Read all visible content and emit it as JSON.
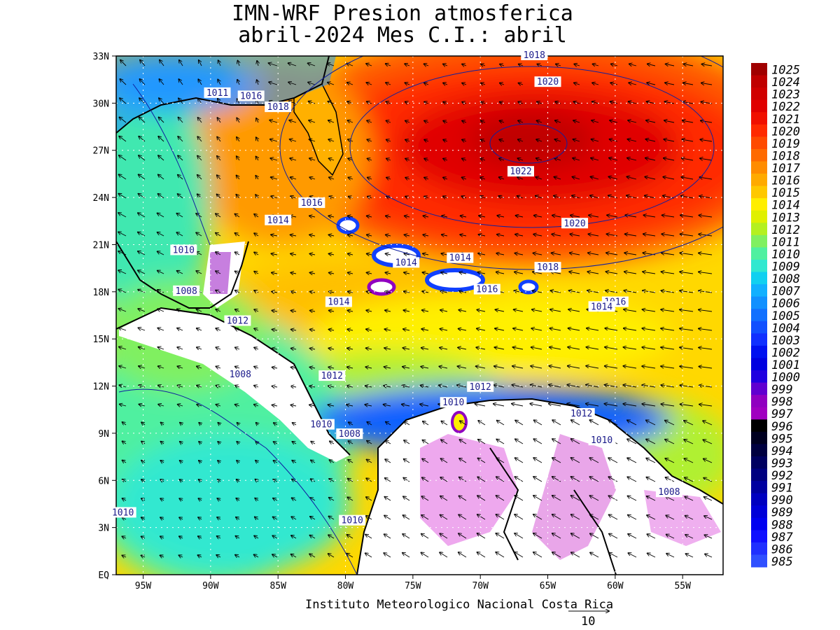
{
  "title": {
    "line1": "IMN-WRF  Presion atmosferica",
    "line2": "abril-2024 Mes C.I.: abril"
  },
  "axes": {
    "lat_labels": [
      "33N",
      "30N",
      "27N",
      "24N",
      "21N",
      "18N",
      "15N",
      "12N",
      "9N",
      "6N",
      "3N",
      "EQ"
    ],
    "lat_values": [
      33,
      30,
      27,
      24,
      21,
      18,
      15,
      12,
      9,
      6,
      3,
      0
    ],
    "lon_labels": [
      "95W",
      "90W",
      "85W",
      "80W",
      "75W",
      "70W",
      "65W",
      "60W",
      "55W"
    ],
    "lon_values": [
      -95,
      -90,
      -85,
      -80,
      -75,
      -70,
      -65,
      -60,
      -55
    ],
    "lon_range": [
      -97,
      -52
    ],
    "lat_range": [
      0,
      33
    ]
  },
  "colorbar": {
    "levels": [
      1025,
      1024,
      1023,
      1022,
      1021,
      1020,
      1019,
      1018,
      1017,
      1016,
      1015,
      1014,
      1013,
      1012,
      1011,
      1010,
      1009,
      1008,
      1007,
      1006,
      1005,
      1004,
      1003,
      1002,
      1001,
      1000,
      999,
      998,
      997,
      996,
      995,
      994,
      993,
      992,
      991,
      990,
      989,
      988,
      987,
      986,
      985
    ],
    "colors": [
      "#a00000",
      "#c00000",
      "#d00000",
      "#e00000",
      "#f01000",
      "#ff2a00",
      "#ff4a00",
      "#ff6a00",
      "#ff8c00",
      "#ffaa00",
      "#ffc800",
      "#ffee00",
      "#e0f000",
      "#b4f020",
      "#80f060",
      "#50f0a0",
      "#30e8d0",
      "#10d0f0",
      "#10b0ff",
      "#1090ff",
      "#1070ff",
      "#1050ff",
      "#1030ff",
      "#0010f0",
      "#0000e0",
      "#2000e0",
      "#6000d0",
      "#9000c0",
      "#a000c0",
      "#000000",
      "#000020",
      "#000040",
      "#000060",
      "#000080",
      "#0000a0",
      "#0000c0",
      "#0000d8",
      "#0000f0",
      "#1010ff",
      "#2030ff",
      "#3050ff"
    ]
  },
  "contour_labels": [
    {
      "text": "1018",
      "lon": -66,
      "lat": 33
    },
    {
      "text": "1020",
      "lon": -65,
      "lat": 31.3
    },
    {
      "text": "1022",
      "lon": -67,
      "lat": 25.6
    },
    {
      "text": "1020",
      "lon": -63,
      "lat": 22.3
    },
    {
      "text": "1018",
      "lon": -65,
      "lat": 19.5
    },
    {
      "text": "1016",
      "lon": -60,
      "lat": 17.3
    },
    {
      "text": "1014",
      "lon": -61,
      "lat": 17
    },
    {
      "text": "1016",
      "lon": -69.5,
      "lat": 18.1
    },
    {
      "text": "1014",
      "lon": -71.5,
      "lat": 20.1
    },
    {
      "text": "1016",
      "lon": -82.5,
      "lat": 23.6
    },
    {
      "text": "1014",
      "lon": -85,
      "lat": 22.5
    },
    {
      "text": "1014",
      "lon": -75.5,
      "lat": 19.8
    },
    {
      "text": "1014",
      "lon": -80.5,
      "lat": 17.3
    },
    {
      "text": "1016",
      "lon": -87,
      "lat": 30.4
    },
    {
      "text": "1018",
      "lon": -85,
      "lat": 29.7
    },
    {
      "text": "1011",
      "lon": -89.5,
      "lat": 30.6
    },
    {
      "text": "1010",
      "lon": -92,
      "lat": 20.6
    },
    {
      "text": "1008",
      "lon": -91.8,
      "lat": 18
    },
    {
      "text": "1012",
      "lon": -88,
      "lat": 16.1
    },
    {
      "text": "1008",
      "lon": -87.8,
      "lat": 12.7
    },
    {
      "text": "1012",
      "lon": -81,
      "lat": 12.6
    },
    {
      "text": "1012",
      "lon": -70,
      "lat": 11.9
    },
    {
      "text": "1010",
      "lon": -72,
      "lat": 10.9
    },
    {
      "text": "1010",
      "lon": -81.8,
      "lat": 9.5
    },
    {
      "text": "1008",
      "lon": -79.7,
      "lat": 8.9
    },
    {
      "text": "1012",
      "lon": -62.5,
      "lat": 10.2
    },
    {
      "text": "1010",
      "lon": -61,
      "lat": 8.5
    },
    {
      "text": "1008",
      "lon": -56,
      "lat": 5.2
    },
    {
      "text": "1010",
      "lon": -96.5,
      "lat": 3.9
    },
    {
      "text": "1010",
      "lon": -79.5,
      "lat": 3.4
    }
  ],
  "footer": {
    "credit": "Instituto Meteorologico Nacional Costa Rica",
    "vector_scale": "10"
  }
}
